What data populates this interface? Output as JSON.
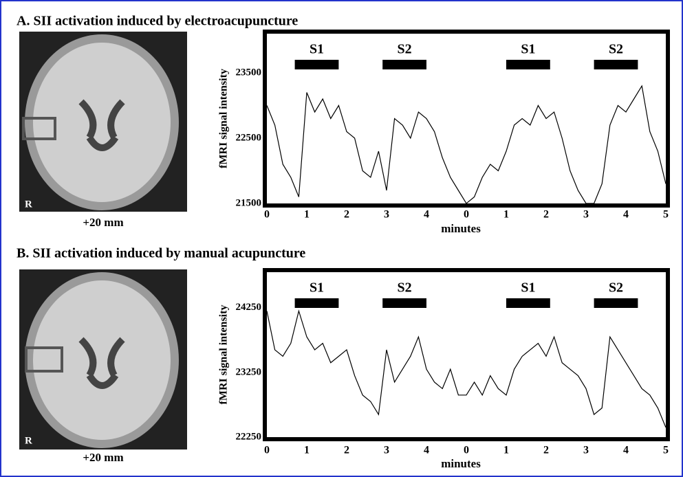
{
  "chart_data": [
    {
      "type": "line",
      "title": "A. SII activation induced by electroacupuncture",
      "image_caption": "+20 mm",
      "image_label": "R",
      "y_label": "fMRI signal intensity",
      "x_label": "minutes",
      "color": "#000000",
      "x": [
        0,
        0.2,
        0.4,
        0.6,
        0.8,
        1,
        1.2,
        1.4,
        1.6,
        1.8,
        2,
        2.2,
        2.4,
        2.6,
        2.8,
        3,
        3.2,
        3.4,
        3.6,
        3.8,
        4,
        4.2,
        4.4,
        4.6,
        4.8,
        5,
        5.2,
        5.4,
        5.6,
        5.8,
        6,
        6.2,
        6.4,
        6.6,
        6.8,
        7,
        7.2,
        7.4,
        7.6,
        7.8,
        8,
        8.2,
        8.4,
        8.6,
        8.8,
        9,
        9.2,
        9.4,
        9.6,
        9.8,
        10
      ],
      "values": [
        23000,
        22700,
        22100,
        21900,
        21600,
        23200,
        22900,
        23100,
        22800,
        23000,
        22600,
        22500,
        22000,
        21900,
        22300,
        21700,
        22800,
        22700,
        22500,
        22900,
        22800,
        22600,
        22200,
        21900,
        21700,
        21500,
        21600,
        21900,
        22100,
        22000,
        22300,
        22700,
        22800,
        22700,
        23000,
        22800,
        22900,
        22500,
        22000,
        21700,
        21500,
        21500,
        21800,
        22700,
        23000,
        22900,
        23100,
        23300,
        22600,
        22300,
        21800
      ],
      "blocks": [
        {
          "label": "S1",
          "start": 0.7,
          "end": 1.8
        },
        {
          "label": "S2",
          "start": 2.9,
          "end": 4.0
        },
        {
          "label": "S1",
          "start": 6.0,
          "end": 7.1
        },
        {
          "label": "S2",
          "start": 8.2,
          "end": 9.3
        }
      ],
      "xlim": [
        0,
        10
      ],
      "xticks": [
        0,
        1,
        2,
        3,
        4,
        {
          "value": 5,
          "label": "0"
        },
        {
          "value": 6,
          "label": "1"
        },
        {
          "value": 7,
          "label": "2"
        },
        {
          "value": 8,
          "label": "3"
        },
        {
          "value": 9,
          "label": "4"
        },
        {
          "value": 10,
          "label": "5"
        }
      ],
      "ylim": [
        21500,
        24100
      ],
      "yticks": [
        21500,
        22500,
        23500
      ]
    },
    {
      "type": "line",
      "title": "B. SII activation induced by manual acupuncture",
      "image_caption": "+20 mm",
      "image_label": "R",
      "y_label": "fMRI signal intensity",
      "x_label": "minutes",
      "color": "#000000",
      "x": [
        0,
        0.2,
        0.4,
        0.6,
        0.8,
        1,
        1.2,
        1.4,
        1.6,
        1.8,
        2,
        2.2,
        2.4,
        2.6,
        2.8,
        3,
        3.2,
        3.4,
        3.6,
        3.8,
        4,
        4.2,
        4.4,
        4.6,
        4.8,
        5,
        5.2,
        5.4,
        5.6,
        5.8,
        6,
        6.2,
        6.4,
        6.6,
        6.8,
        7,
        7.2,
        7.4,
        7.6,
        7.8,
        8,
        8.2,
        8.4,
        8.6,
        8.8,
        9,
        9.2,
        9.4,
        9.6,
        9.8,
        10
      ],
      "values": [
        24200,
        23600,
        23500,
        23700,
        24200,
        23800,
        23600,
        23700,
        23400,
        23500,
        23600,
        23200,
        22900,
        22800,
        22600,
        23600,
        23100,
        23300,
        23500,
        23800,
        23300,
        23100,
        23000,
        23300,
        22900,
        22900,
        23100,
        22900,
        23200,
        23000,
        22900,
        23300,
        23500,
        23600,
        23700,
        23500,
        23800,
        23400,
        23300,
        23200,
        23000,
        22600,
        22700,
        23800,
        23600,
        23400,
        23200,
        23000,
        22900,
        22700,
        22400
      ],
      "blocks": [
        {
          "label": "S1",
          "start": 0.7,
          "end": 1.8
        },
        {
          "label": "S2",
          "start": 2.9,
          "end": 4.0
        },
        {
          "label": "S1",
          "start": 6.0,
          "end": 7.1
        },
        {
          "label": "S2",
          "start": 8.2,
          "end": 9.3
        }
      ],
      "xlim": [
        0,
        10
      ],
      "xticks": [
        0,
        1,
        2,
        3,
        4,
        {
          "value": 5,
          "label": "0"
        },
        {
          "value": 6,
          "label": "1"
        },
        {
          "value": 7,
          "label": "2"
        },
        {
          "value": 8,
          "label": "3"
        },
        {
          "value": 9,
          "label": "4"
        },
        {
          "value": 10,
          "label": "5"
        }
      ],
      "ylim": [
        22250,
        24800
      ],
      "yticks": [
        22250,
        23250,
        24250
      ]
    }
  ]
}
